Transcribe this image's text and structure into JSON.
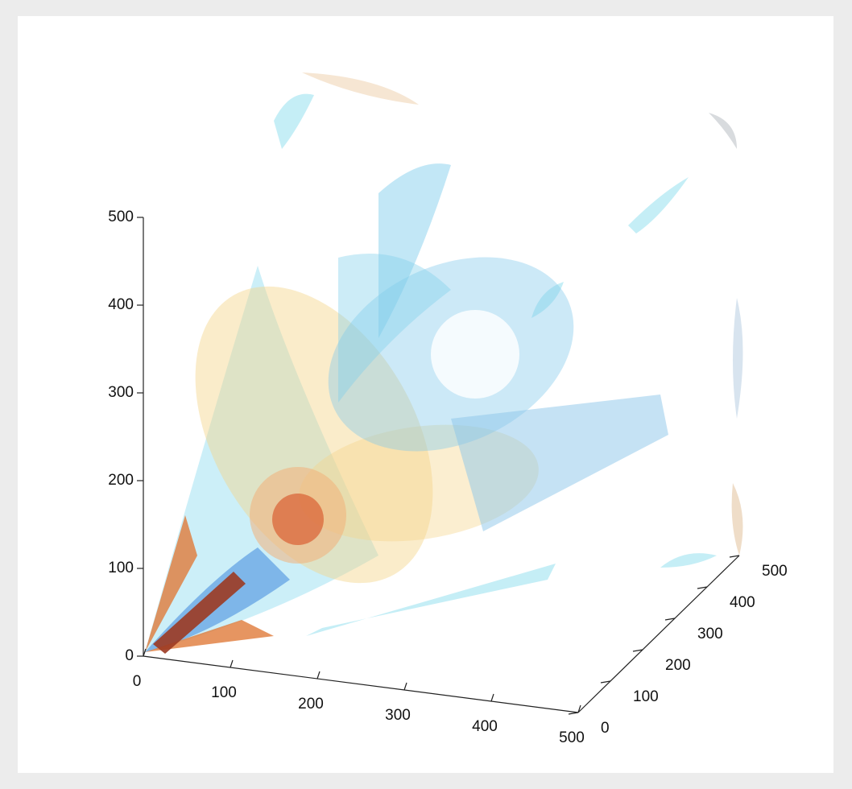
{
  "chart_data": {
    "type": "volume3d",
    "xlim": [
      0,
      500
    ],
    "xticks": [
      0,
      100,
      200,
      300,
      400,
      500
    ],
    "ylim": [
      0,
      500
    ],
    "yticks": [
      0,
      100,
      200,
      300,
      400,
      500
    ],
    "zlim": [
      0,
      500
    ],
    "zticks": [
      0,
      100,
      200,
      300,
      400,
      500
    ]
  }
}
